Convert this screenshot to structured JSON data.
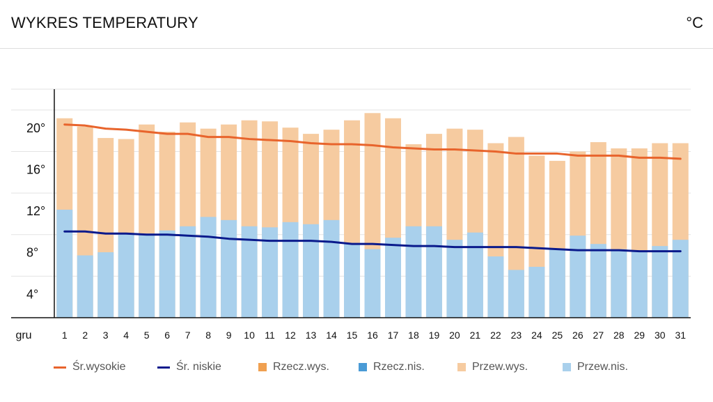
{
  "header": {
    "title": "WYKRES TEMPERATURY",
    "unit": "°C"
  },
  "legend": [
    {
      "label": "Śr.wysokie",
      "kind": "line",
      "color": "#e8642c"
    },
    {
      "label": "Śr. niskie",
      "kind": "line",
      "color": "#0a1a8c"
    },
    {
      "label": "Rzecz.wys.",
      "kind": "square",
      "color": "#f0a050"
    },
    {
      "label": "Rzecz.nis.",
      "kind": "square",
      "color": "#4a9bd6"
    },
    {
      "label": "Przew.wys.",
      "kind": "square",
      "color": "#f6cba0"
    },
    {
      "label": "Przew.nis.",
      "kind": "square",
      "color": "#a9d0ec"
    }
  ],
  "chart_data": {
    "type": "bar",
    "x_label_prefix": "gru",
    "categories": [
      "1",
      "2",
      "3",
      "4",
      "5",
      "6",
      "7",
      "8",
      "9",
      "10",
      "11",
      "12",
      "13",
      "14",
      "15",
      "16",
      "17",
      "18",
      "19",
      "20",
      "21",
      "22",
      "23",
      "24",
      "25",
      "26",
      "27",
      "28",
      "29",
      "30",
      "31"
    ],
    "ylim": [
      0,
      22
    ],
    "yticks": [
      4,
      8,
      12,
      16,
      20
    ],
    "ytick_labels": [
      "4°",
      "8°",
      "12°",
      "16°",
      "20°"
    ],
    "grid": true,
    "series": [
      {
        "name": "Przew.wys.",
        "kind": "bar",
        "color": "#f6cba0",
        "values": [
          19.2,
          18.4,
          17.3,
          17.2,
          18.6,
          17.9,
          18.8,
          18.2,
          18.6,
          19.0,
          18.9,
          18.3,
          17.7,
          18.1,
          19.0,
          19.7,
          19.2,
          16.7,
          17.7,
          18.2,
          18.1,
          16.8,
          17.4,
          15.6,
          15.1,
          16.0,
          16.9,
          16.3,
          16.3,
          16.8,
          16.8
        ]
      },
      {
        "name": "Przew.nis.",
        "kind": "bar",
        "color": "#a9d0ec",
        "values": [
          10.4,
          6.0,
          6.3,
          8.1,
          8.1,
          8.4,
          8.8,
          9.7,
          9.4,
          8.8,
          8.7,
          9.2,
          9.0,
          9.4,
          7.2,
          6.6,
          7.7,
          8.8,
          8.8,
          7.5,
          8.2,
          5.9,
          4.6,
          4.9,
          6.6,
          7.9,
          7.1,
          6.6,
          6.4,
          6.9,
          7.5
        ]
      },
      {
        "name": "Śr.wysokie",
        "kind": "line",
        "color": "#e8642c",
        "values": [
          18.6,
          18.5,
          18.2,
          18.1,
          17.9,
          17.7,
          17.7,
          17.4,
          17.4,
          17.2,
          17.1,
          17.0,
          16.8,
          16.7,
          16.7,
          16.6,
          16.4,
          16.3,
          16.2,
          16.2,
          16.1,
          16.0,
          15.8,
          15.8,
          15.8,
          15.6,
          15.6,
          15.6,
          15.4,
          15.4,
          15.3
        ]
      },
      {
        "name": "Śr. niskie",
        "kind": "line",
        "color": "#0a1a8c",
        "values": [
          8.3,
          8.3,
          8.1,
          8.1,
          8.0,
          8.0,
          7.9,
          7.8,
          7.6,
          7.5,
          7.4,
          7.4,
          7.4,
          7.3,
          7.1,
          7.1,
          7.0,
          6.9,
          6.9,
          6.8,
          6.8,
          6.8,
          6.8,
          6.7,
          6.6,
          6.5,
          6.5,
          6.5,
          6.4,
          6.4,
          6.4
        ]
      }
    ]
  }
}
